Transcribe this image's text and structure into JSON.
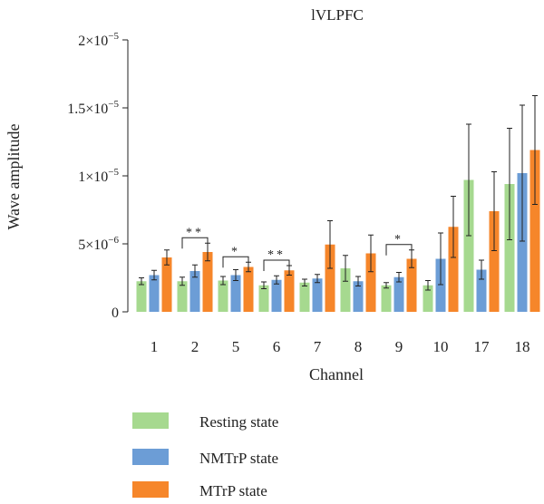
{
  "chart_data": {
    "type": "bar",
    "title": "lVLPFC",
    "xlabel": "Channel",
    "ylabel": "Wave amplitude",
    "ylim": [
      0,
      2e-05
    ],
    "yticks": [
      {
        "value": 0,
        "label": "0"
      },
      {
        "value": 5e-06,
        "mant": "5",
        "exp": "−6"
      },
      {
        "value": 1e-05,
        "mant": "1",
        "exp": "−5"
      },
      {
        "value": 1.5e-05,
        "mant": "1.5",
        "exp": "−5"
      },
      {
        "value": 2e-05,
        "mant": "2",
        "exp": "−5"
      }
    ],
    "categories": [
      "1",
      "2",
      "5",
      "6",
      "7",
      "8",
      "9",
      "10",
      "17",
      "18"
    ],
    "series": [
      {
        "name": "Resting state",
        "color": "#a6d98f",
        "values": [
          2.25e-06,
          2.25e-06,
          2.3e-06,
          1.95e-06,
          2.15e-06,
          3.2e-06,
          1.95e-06,
          1.95e-06,
          9.7e-06,
          9.4e-06
        ],
        "errors": [
          2.5e-07,
          3e-07,
          3e-07,
          2.5e-07,
          2.5e-07,
          9.5e-07,
          2e-07,
          3.5e-07,
          4.1e-06,
          4.1e-06
        ]
      },
      {
        "name": "NMTrP state",
        "color": "#6c9dd6",
        "values": [
          2.7e-06,
          3e-06,
          2.7e-06,
          2.35e-06,
          2.45e-06,
          2.25e-06,
          2.55e-06,
          3.9e-06,
          3.1e-06,
          1.02e-05
        ],
        "errors": [
          3.5e-07,
          4.5e-07,
          4e-07,
          3e-07,
          3e-07,
          3.5e-07,
          3.5e-07,
          1.9e-06,
          7e-07,
          5e-06
        ]
      },
      {
        "name": "MTrP state",
        "color": "#f6862a",
        "values": [
          4e-06,
          4.4e-06,
          3.3e-06,
          3.05e-06,
          4.95e-06,
          4.3e-06,
          3.9e-06,
          6.25e-06,
          7.4e-06,
          1.19e-05
        ],
        "errors": [
          5.5e-07,
          6.5e-07,
          3.5e-07,
          3.5e-07,
          1.75e-06,
          1.35e-06,
          6.5e-07,
          2.25e-06,
          2.9e-06,
          4e-06
        ]
      }
    ],
    "significance": [
      {
        "category": "2",
        "marker": "**"
      },
      {
        "category": "5",
        "marker": "*"
      },
      {
        "category": "6",
        "marker": "**"
      },
      {
        "category": "9",
        "marker": "*"
      }
    ],
    "legend_position": "bottom-left",
    "grid": false
  }
}
